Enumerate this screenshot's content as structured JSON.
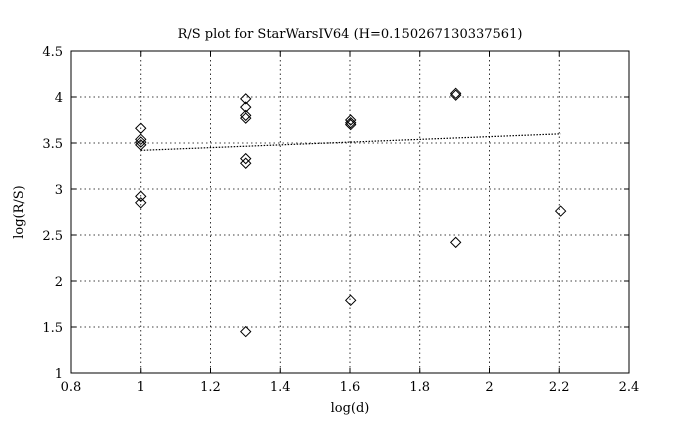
{
  "chart_data": {
    "type": "scatter",
    "title": "R/S plot for StarWarsIV64 (H=0.150267130337561)",
    "xlabel": "log(d)",
    "ylabel": "log(R/S)",
    "xlim": [
      0.8,
      2.4
    ],
    "ylim": [
      1,
      4.5
    ],
    "xticks": [
      0.8,
      1,
      1.2,
      1.4,
      1.6,
      1.8,
      2,
      2.2,
      2.4
    ],
    "xtick_labels": [
      "0.8",
      "1",
      "1.2",
      "1.4",
      "1.6",
      "1.8",
      "2",
      "2.2",
      "2.4"
    ],
    "yticks": [
      1,
      1.5,
      2,
      2.5,
      3,
      3.5,
      4,
      4.5
    ],
    "ytick_labels": [
      "1",
      "1.5",
      "2",
      "2.5",
      "3",
      "3.5",
      "4",
      "4.5"
    ],
    "grid": true,
    "series": [
      {
        "marker": "diamond",
        "points": [
          {
            "x": 1.0,
            "y": 3.66
          },
          {
            "x": 1.0,
            "y": 3.54
          },
          {
            "x": 1.0,
            "y": 3.51
          },
          {
            "x": 1.0,
            "y": 3.48
          },
          {
            "x": 1.0,
            "y": 2.92
          },
          {
            "x": 1.0,
            "y": 2.85
          },
          {
            "x": 1.301,
            "y": 3.98
          },
          {
            "x": 1.301,
            "y": 3.89
          },
          {
            "x": 1.301,
            "y": 3.8
          },
          {
            "x": 1.301,
            "y": 3.77
          },
          {
            "x": 1.301,
            "y": 3.33
          },
          {
            "x": 1.301,
            "y": 3.28
          },
          {
            "x": 1.301,
            "y": 1.45
          },
          {
            "x": 1.602,
            "y": 3.75
          },
          {
            "x": 1.602,
            "y": 3.72
          },
          {
            "x": 1.602,
            "y": 3.7
          },
          {
            "x": 1.602,
            "y": 1.79
          },
          {
            "x": 1.903,
            "y": 4.04
          },
          {
            "x": 1.903,
            "y": 4.02
          },
          {
            "x": 1.903,
            "y": 2.42
          },
          {
            "x": 2.204,
            "y": 2.76
          }
        ]
      }
    ],
    "fit_line": {
      "x": [
        1.0,
        2.204
      ],
      "y": [
        3.42,
        3.6
      ]
    }
  }
}
